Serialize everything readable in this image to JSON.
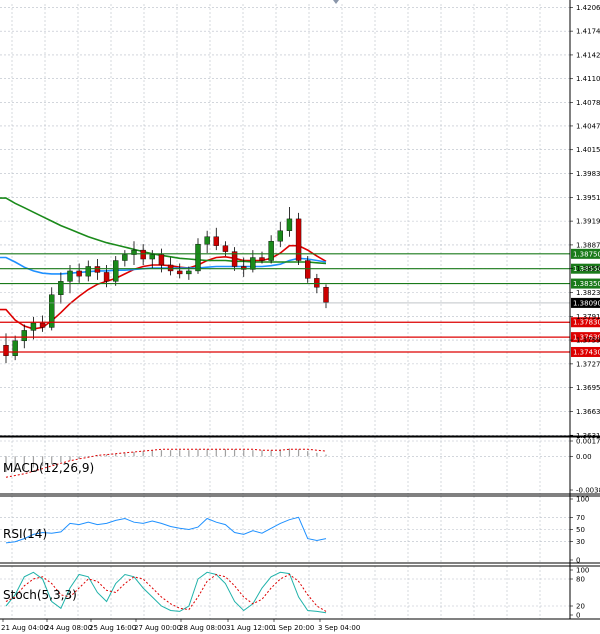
{
  "chart_data": {
    "type": "candlestick",
    "price_axis": {
      "ylim": [
        1.63,
        1.4211
      ],
      "ticks": [
        "1.42065",
        "1.41745",
        "1.41425",
        "1.41105",
        "1.40785",
        "1.40470",
        "1.40150",
        "1.39830",
        "1.39510",
        "1.39190",
        "1.38870",
        "1.38550",
        "1.38230",
        "1.37910",
        "1.37590",
        "1.37270",
        "1.36950",
        "1.36630",
        "1.36310"
      ],
      "current_price": "1.38090"
    },
    "time_axis": {
      "labels": [
        "21 Aug 04:00",
        "24 Aug 08:00",
        "25 Aug 16:00",
        "27 Aug 00:00",
        "28 Aug 08:00",
        "31 Aug 12:00",
        "1 Sep 20:00",
        "3 Sep 04:00"
      ]
    },
    "levels": {
      "resistance": [
        "1.38750",
        "1.38550",
        "1.38350"
      ],
      "support": [
        "1.37830",
        "1.37630",
        "1.37430"
      ],
      "resistance_color": "#1a7a1a",
      "support_color": "#dd0000"
    },
    "candles": [
      [
        1.3752,
        1.3768,
        1.3728,
        1.3738
      ],
      [
        1.3738,
        1.3765,
        1.3732,
        1.3758
      ],
      [
        1.3758,
        1.378,
        1.3748,
        1.3772
      ],
      [
        1.3772,
        1.379,
        1.376,
        1.3782
      ],
      [
        1.3782,
        1.3792,
        1.377,
        1.3776
      ],
      [
        1.3776,
        1.383,
        1.3772,
        1.382
      ],
      [
        1.382,
        1.385,
        1.3808,
        1.3838
      ],
      [
        1.3838,
        1.386,
        1.3822,
        1.3852
      ],
      [
        1.3852,
        1.3862,
        1.3836,
        1.3845
      ],
      [
        1.3845,
        1.3866,
        1.3838,
        1.3858
      ],
      [
        1.3858,
        1.3868,
        1.384,
        1.385
      ],
      [
        1.385,
        1.386,
        1.383,
        1.3838
      ],
      [
        1.3838,
        1.3872,
        1.3832,
        1.3866
      ],
      [
        1.3866,
        1.388,
        1.3858,
        1.3874
      ],
      [
        1.3874,
        1.3892,
        1.386,
        1.388
      ],
      [
        1.388,
        1.3888,
        1.386,
        1.3868
      ],
      [
        1.3868,
        1.388,
        1.3856,
        1.3874
      ],
      [
        1.3874,
        1.3882,
        1.385,
        1.386
      ],
      [
        1.386,
        1.387,
        1.3846,
        1.3852
      ],
      [
        1.3852,
        1.3862,
        1.3842,
        1.3848
      ],
      [
        1.3848,
        1.3858,
        1.384,
        1.3852
      ],
      [
        1.3852,
        1.3896,
        1.3848,
        1.3888
      ],
      [
        1.3888,
        1.3906,
        1.3876,
        1.3898
      ],
      [
        1.3898,
        1.391,
        1.388,
        1.3886
      ],
      [
        1.3886,
        1.3892,
        1.3872,
        1.3878
      ],
      [
        1.3878,
        1.3884,
        1.3852,
        1.3858
      ],
      [
        1.3858,
        1.387,
        1.3844,
        1.3854
      ],
      [
        1.3854,
        1.388,
        1.385,
        1.387
      ],
      [
        1.387,
        1.3878,
        1.3862,
        1.3866
      ],
      [
        1.3866,
        1.39,
        1.3862,
        1.3892
      ],
      [
        1.3892,
        1.3918,
        1.3884,
        1.3906
      ],
      [
        1.3906,
        1.3938,
        1.3898,
        1.3922
      ],
      [
        1.3922,
        1.393,
        1.386,
        1.3866
      ],
      [
        1.3866,
        1.3872,
        1.3836,
        1.3842
      ],
      [
        1.3842,
        1.3848,
        1.3822,
        1.383
      ],
      [
        1.383,
        1.3834,
        1.3802,
        1.381
      ]
    ],
    "moving_averages": [
      {
        "color": "#dd0000",
        "values": [
          1.38,
          1.3786,
          1.3778,
          1.3774,
          1.3776,
          1.3785,
          1.3796,
          1.3808,
          1.3818,
          1.3827,
          1.3834,
          1.3838,
          1.3842,
          1.3848,
          1.3854,
          1.3858,
          1.386,
          1.386,
          1.3859,
          1.3857,
          1.3856,
          1.386,
          1.3866,
          1.387,
          1.3871,
          1.3869,
          1.3866,
          1.3866,
          1.3866,
          1.3869,
          1.3876,
          1.3886,
          1.3886,
          1.388,
          1.3872,
          1.3865
        ]
      },
      {
        "color": "#1e90ff",
        "values": [
          1.387,
          1.3864,
          1.3857,
          1.3852,
          1.3849,
          1.3848,
          1.3848,
          1.3849,
          1.385,
          1.3851,
          1.3852,
          1.3852,
          1.3853,
          1.3853,
          1.3854,
          1.3855,
          1.3856,
          1.3856,
          1.3856,
          1.3856,
          1.3856,
          1.3856,
          1.3857,
          1.3858,
          1.3858,
          1.3858,
          1.3858,
          1.3858,
          1.3858,
          1.3859,
          1.3861,
          1.3866,
          1.3869,
          1.3868,
          1.3866,
          1.3864
        ]
      },
      {
        "color": "#1a8a1a",
        "values": [
          1.395,
          1.3943,
          1.3937,
          1.3931,
          1.3925,
          1.3919,
          1.3913,
          1.3908,
          1.3903,
          1.3898,
          1.3894,
          1.389,
          1.3887,
          1.3884,
          1.3881,
          1.3878,
          1.3875,
          1.3873,
          1.3871,
          1.3869,
          1.3868,
          1.3867,
          1.3866,
          1.3866,
          1.3866,
          1.3865,
          1.3865,
          1.3864,
          1.3864,
          1.3864,
          1.3864,
          1.3864,
          1.3864,
          1.3864,
          1.3863,
          1.3862
        ]
      }
    ],
    "macd": {
      "label": "MACD(12,26,9)",
      "ticks": [
        "0.001753",
        "0.00",
        "-0.003854"
      ],
      "ylim": [
        -0.003854,
        0.001753
      ],
      "histogram": [
        -0.0018,
        -0.0017,
        -0.0015,
        -0.0013,
        -0.0011,
        -0.0009,
        -0.0007,
        -0.0005,
        -0.0003,
        -0.0001,
        0.0001,
        0.0002,
        0.0003,
        0.0004,
        0.0005,
        0.0006,
        0.0007,
        0.0007,
        0.0007,
        0.0007,
        0.0007,
        0.0008,
        0.0008,
        0.0008,
        0.0008,
        0.0008,
        0.0007,
        0.0007,
        0.0007,
        0.0007,
        0.0008,
        0.0009,
        0.0008,
        0.0006,
        0.0004,
        0.0002
      ],
      "signal": [
        -0.0024,
        -0.0022,
        -0.002,
        -0.0017,
        -0.0014,
        -0.0011,
        -0.0008,
        -0.0005,
        -0.0003,
        -0.0001,
        0.0001,
        0.0002,
        0.0003,
        0.0004,
        0.0005,
        0.0006,
        0.0007,
        0.0008,
        0.0008,
        0.0008,
        0.0008,
        0.0008,
        0.0008,
        0.0008,
        0.0008,
        0.0008,
        0.0008,
        0.0008,
        0.0007,
        0.0007,
        0.0007,
        0.0008,
        0.0008,
        0.0008,
        0.0007,
        0.0006
      ]
    },
    "rsi": {
      "label": "RSI(14)",
      "ticks": [
        "100",
        "70",
        "50",
        "30",
        "0"
      ],
      "ylim": [
        0,
        100
      ],
      "values": [
        28,
        30,
        35,
        42,
        45,
        44,
        46,
        60,
        58,
        62,
        58,
        60,
        65,
        68,
        62,
        60,
        64,
        60,
        55,
        52,
        50,
        54,
        68,
        62,
        58,
        45,
        42,
        48,
        44,
        52,
        60,
        66,
        70,
        35,
        32,
        35
      ]
    },
    "stoch": {
      "label": "Stoch(5,3,3)",
      "ticks": [
        "100",
        "80",
        "20",
        "0"
      ],
      "ylim": [
        0,
        100
      ],
      "k": [
        20,
        45,
        85,
        95,
        80,
        30,
        15,
        60,
        90,
        85,
        50,
        30,
        70,
        90,
        85,
        60,
        40,
        20,
        10,
        8,
        20,
        80,
        95,
        90,
        70,
        30,
        10,
        25,
        60,
        85,
        95,
        92,
        40,
        10,
        8,
        5
      ],
      "d": [
        30,
        40,
        65,
        80,
        85,
        70,
        45,
        40,
        60,
        80,
        75,
        55,
        50,
        70,
        85,
        80,
        60,
        40,
        25,
        15,
        12,
        40,
        75,
        90,
        85,
        65,
        40,
        25,
        35,
        60,
        80,
        90,
        75,
        45,
        20,
        8
      ]
    }
  }
}
